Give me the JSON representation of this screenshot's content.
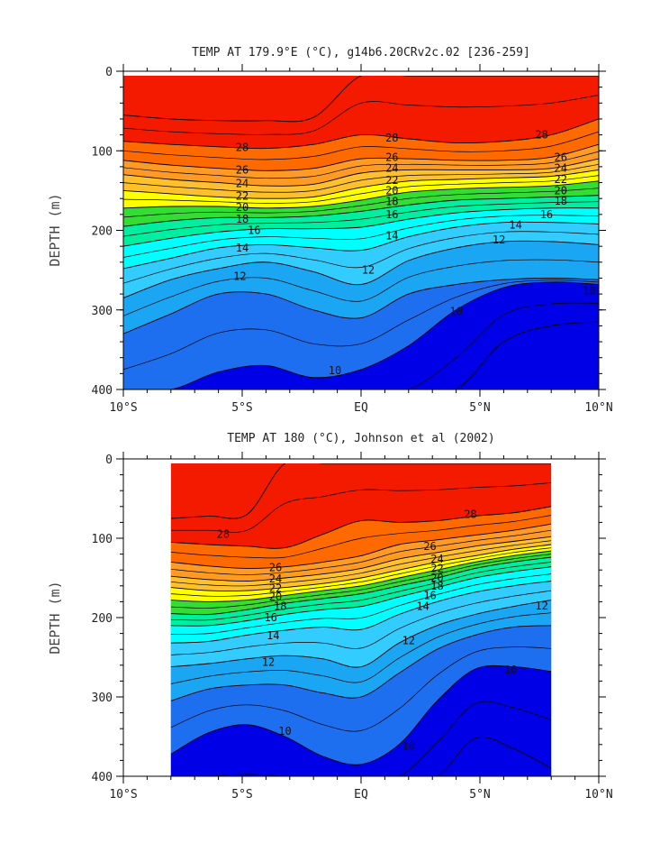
{
  "chart_data": [
    {
      "type": "contour",
      "title": "TEMP AT 179.9°E (°C), g14b6.20CRv2c.02 [236-259]",
      "xlabel": "",
      "ylabel": "DEPTH (m)",
      "xlim": [
        -10,
        10
      ],
      "ylim": [
        0,
        400
      ],
      "y_inverted": true,
      "x_ticks": [
        {
          "value": -10,
          "label": "10°S"
        },
        {
          "value": -5,
          "label": "5°S"
        },
        {
          "value": 0,
          "label": "EQ"
        },
        {
          "value": 5,
          "label": "5°N"
        },
        {
          "value": 10,
          "label": "10°N"
        }
      ],
      "y_ticks": [
        {
          "value": 0,
          "label": "0"
        },
        {
          "value": 100,
          "label": "100"
        },
        {
          "value": 200,
          "label": "200"
        },
        {
          "value": 300,
          "label": "300"
        },
        {
          "value": 400,
          "label": "400"
        }
      ],
      "data_xrange": [
        -10,
        10
      ],
      "x": [
        -10,
        -8,
        -6,
        -4,
        -2,
        0,
        2,
        4,
        6,
        8,
        10
      ],
      "isotherm_depths": [
        {
          "temp": 29,
          "depths": [
            55,
            60,
            62,
            62,
            58,
            0,
            0,
            0,
            0,
            0,
            0
          ]
        },
        {
          "temp": 28,
          "depths": [
            88,
            92,
            95,
            97,
            92,
            80,
            85,
            90,
            88,
            80,
            60
          ]
        },
        {
          "temp": 26,
          "depths": [
            112,
            118,
            122,
            125,
            122,
            110,
            110,
            112,
            112,
            108,
            92
          ]
        },
        {
          "temp": 24,
          "depths": [
            130,
            136,
            140,
            144,
            142,
            128,
            124,
            124,
            124,
            122,
            110
          ]
        },
        {
          "temp": 22,
          "depths": [
            150,
            154,
            158,
            160,
            158,
            146,
            138,
            136,
            134,
            132,
            124
          ]
        },
        {
          "temp": 20,
          "depths": [
            172,
            170,
            170,
            172,
            170,
            162,
            152,
            148,
            146,
            144,
            138
          ]
        },
        {
          "temp": 18,
          "depths": [
            195,
            188,
            184,
            184,
            182,
            176,
            168,
            162,
            160,
            158,
            156
          ]
        },
        {
          "temp": 16,
          "depths": [
            220,
            210,
            202,
            198,
            198,
            196,
            186,
            178,
            174,
            172,
            172
          ]
        },
        {
          "temp": 14,
          "depths": [
            248,
            235,
            222,
            218,
            222,
            225,
            208,
            196,
            190,
            190,
            192
          ]
        },
        {
          "temp": 12,
          "depths": [
            285,
            262,
            248,
            240,
            252,
            268,
            238,
            222,
            214,
            214,
            218
          ]
        },
        {
          "temp": 11,
          "depths": [
            330,
            305,
            280,
            280,
            300,
            310,
            280,
            268,
            262,
            260,
            262
          ]
        },
        {
          "temp": 10,
          "depths": [
            420,
            405,
            378,
            370,
            385,
            375,
            345,
            300,
            272,
            265,
            268
          ]
        },
        {
          "temp": 9,
          "depths": [
            460,
            460,
            460,
            460,
            460,
            460,
            460,
            420,
            340,
            320,
            315
          ]
        }
      ],
      "contour_labels": [
        {
          "text": "28",
          "x": -5,
          "y": 96
        },
        {
          "text": "26",
          "x": -5,
          "y": 124
        },
        {
          "text": "24",
          "x": -5,
          "y": 141
        },
        {
          "text": "22",
          "x": -5,
          "y": 157
        },
        {
          "text": "20",
          "x": -5,
          "y": 171
        },
        {
          "text": "18",
          "x": -5,
          "y": 186
        },
        {
          "text": "16",
          "x": -4.5,
          "y": 200
        },
        {
          "text": "14",
          "x": -5,
          "y": 222
        },
        {
          "text": "12",
          "x": -5.1,
          "y": 258
        },
        {
          "text": "28",
          "x": 1.3,
          "y": 84
        },
        {
          "text": "26",
          "x": 1.3,
          "y": 108
        },
        {
          "text": "24",
          "x": 1.3,
          "y": 122
        },
        {
          "text": "22",
          "x": 1.3,
          "y": 137
        },
        {
          "text": "20",
          "x": 1.3,
          "y": 150
        },
        {
          "text": "18",
          "x": 1.3,
          "y": 164
        },
        {
          "text": "16",
          "x": 1.3,
          "y": 180
        },
        {
          "text": "14",
          "x": 1.3,
          "y": 207
        },
        {
          "text": "12",
          "x": 0.3,
          "y": 250
        },
        {
          "text": "12",
          "x": 5.8,
          "y": 212
        },
        {
          "text": "28",
          "x": 7.6,
          "y": 80
        },
        {
          "text": "26",
          "x": 8.4,
          "y": 108
        },
        {
          "text": "24",
          "x": 8.4,
          "y": 122
        },
        {
          "text": "22",
          "x": 8.4,
          "y": 136
        },
        {
          "text": "20",
          "x": 8.4,
          "y": 150
        },
        {
          "text": "18",
          "x": 8.4,
          "y": 163
        },
        {
          "text": "16",
          "x": 7.8,
          "y": 180
        },
        {
          "text": "14",
          "x": 6.5,
          "y": 193
        },
        {
          "text": "10",
          "x": -1.1,
          "y": 376
        },
        {
          "text": "10",
          "x": 4,
          "y": 302
        },
        {
          "text": "10",
          "x": 9.6,
          "y": 276
        }
      ]
    },
    {
      "type": "contour",
      "title": "TEMP AT 180 (°C), Johnson et al (2002)",
      "xlabel": "",
      "ylabel": "DEPTH (m)",
      "xlim": [
        -10,
        10
      ],
      "ylim": [
        0,
        400
      ],
      "y_inverted": true,
      "x_ticks": [
        {
          "value": -10,
          "label": "10°S"
        },
        {
          "value": -5,
          "label": "5°S"
        },
        {
          "value": 0,
          "label": "EQ"
        },
        {
          "value": 5,
          "label": "5°N"
        },
        {
          "value": 10,
          "label": "10°N"
        }
      ],
      "y_ticks": [
        {
          "value": 0,
          "label": "0"
        },
        {
          "value": 100,
          "label": "100"
        },
        {
          "value": 200,
          "label": "200"
        },
        {
          "value": 300,
          "label": "300"
        },
        {
          "value": 400,
          "label": "400"
        }
      ],
      "data_xrange": [
        -8,
        8
      ],
      "x": [
        -8,
        -6.4,
        -4.8,
        -3.2,
        -1.6,
        0,
        1.6,
        3.2,
        4.8,
        6.4,
        8
      ],
      "isotherm_depths": [
        {
          "temp": 29,
          "depths": [
            75,
            72,
            70,
            0,
            0,
            0,
            0,
            0,
            0,
            0,
            0
          ]
        },
        {
          "temp": 28,
          "depths": [
            105,
            108,
            110,
            112,
            95,
            78,
            80,
            78,
            72,
            68,
            60
          ]
        },
        {
          "temp": 26,
          "depths": [
            130,
            135,
            138,
            136,
            130,
            122,
            108,
            102,
            96,
            90,
            82
          ]
        },
        {
          "temp": 24,
          "depths": [
            148,
            152,
            154,
            150,
            145,
            138,
            126,
            118,
            110,
            104,
            98
          ]
        },
        {
          "temp": 22,
          "depths": [
            162,
            166,
            166,
            162,
            157,
            150,
            140,
            130,
            122,
            114,
            108
          ]
        },
        {
          "temp": 20,
          "depths": [
            178,
            180,
            178,
            172,
            166,
            160,
            150,
            140,
            130,
            122,
            116
          ]
        },
        {
          "temp": 18,
          "depths": [
            195,
            196,
            190,
            182,
            176,
            170,
            160,
            150,
            138,
            130,
            124
          ]
        },
        {
          "temp": 16,
          "depths": [
            210,
            210,
            204,
            196,
            190,
            186,
            174,
            162,
            150,
            142,
            136
          ]
        },
        {
          "temp": 14,
          "depths": [
            232,
            230,
            222,
            216,
            212,
            215,
            196,
            180,
            168,
            160,
            154
          ]
        },
        {
          "temp": 12,
          "depths": [
            262,
            258,
            252,
            248,
            252,
            262,
            232,
            210,
            196,
            186,
            178
          ]
        },
        {
          "temp": 11,
          "depths": [
            305,
            290,
            285,
            285,
            295,
            300,
            270,
            240,
            222,
            212,
            210
          ]
        },
        {
          "temp": 10,
          "depths": [
            372,
            345,
            335,
            350,
            375,
            385,
            360,
            305,
            265,
            262,
            268
          ]
        },
        {
          "temp": 9,
          "depths": [
            460,
            460,
            460,
            460,
            460,
            460,
            460,
            410,
            352,
            365,
            390
          ]
        }
      ],
      "contour_labels": [
        {
          "text": "28",
          "x": -5.8,
          "y": 95
        },
        {
          "text": "26",
          "x": -3.6,
          "y": 137
        },
        {
          "text": "24",
          "x": -3.6,
          "y": 151
        },
        {
          "text": "22",
          "x": -3.6,
          "y": 163
        },
        {
          "text": "20",
          "x": -3.6,
          "y": 174
        },
        {
          "text": "18",
          "x": -3.4,
          "y": 186
        },
        {
          "text": "16",
          "x": -3.8,
          "y": 200
        },
        {
          "text": "14",
          "x": -3.7,
          "y": 223
        },
        {
          "text": "12",
          "x": -3.9,
          "y": 256
        },
        {
          "text": "10",
          "x": -3.2,
          "y": 343
        },
        {
          "text": "28",
          "x": 4.6,
          "y": 70
        },
        {
          "text": "26",
          "x": 2.9,
          "y": 110
        },
        {
          "text": "24",
          "x": 3.2,
          "y": 126
        },
        {
          "text": "22",
          "x": 3.2,
          "y": 138
        },
        {
          "text": "20",
          "x": 3.2,
          "y": 150
        },
        {
          "text": "18",
          "x": 3.2,
          "y": 160
        },
        {
          "text": "16",
          "x": 2.9,
          "y": 172
        },
        {
          "text": "14",
          "x": 2.6,
          "y": 186
        },
        {
          "text": "12",
          "x": 2,
          "y": 229
        },
        {
          "text": "12",
          "x": 7.6,
          "y": 185
        },
        {
          "text": "10",
          "x": 2,
          "y": 362
        },
        {
          "text": "10",
          "x": 6.3,
          "y": 266
        }
      ]
    }
  ]
}
